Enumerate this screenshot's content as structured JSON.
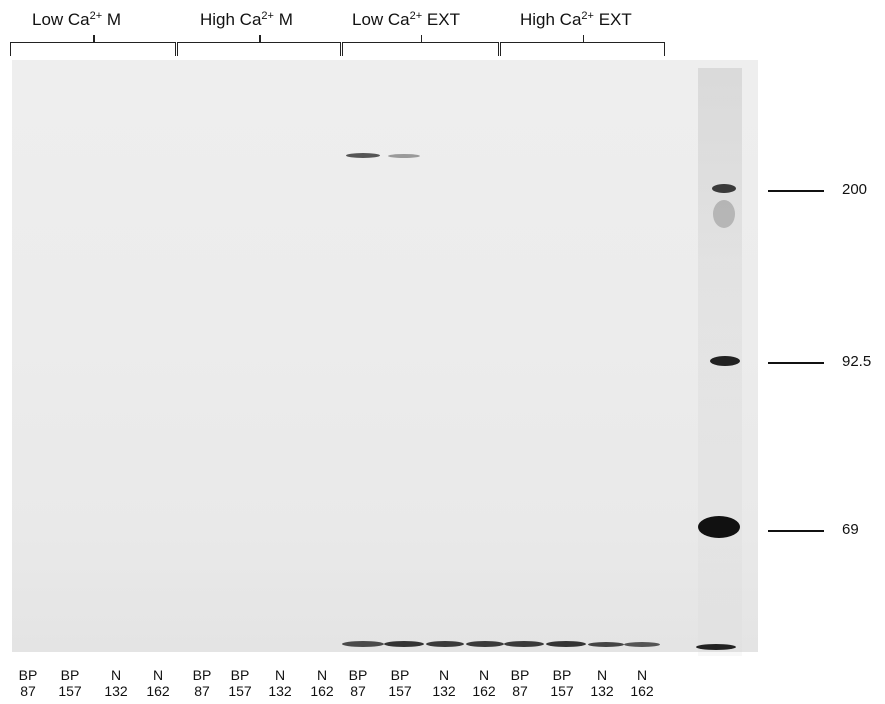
{
  "groups": [
    {
      "name_prefix": "Low Ca",
      "sup": "2+",
      "name_suffix": " M"
    },
    {
      "name_prefix": "High Ca",
      "sup": "2+",
      "name_suffix": " M"
    },
    {
      "name_prefix": "Low Ca",
      "sup": "2+",
      "name_suffix": " EXT"
    },
    {
      "name_prefix": "High Ca",
      "sup": "2+",
      "name_suffix": " EXT"
    }
  ],
  "lanes": [
    {
      "top": "BP",
      "bottom": "87"
    },
    {
      "top": "BP",
      "bottom": "157"
    },
    {
      "top": "N",
      "bottom": "132"
    },
    {
      "top": "N",
      "bottom": "162"
    },
    {
      "top": "BP",
      "bottom": "87"
    },
    {
      "top": "BP",
      "bottom": "157"
    },
    {
      "top": "N",
      "bottom": "132"
    },
    {
      "top": "N",
      "bottom": "162"
    },
    {
      "top": "BP",
      "bottom": "87"
    },
    {
      "top": "BP",
      "bottom": "157"
    },
    {
      "top": "N",
      "bottom": "132"
    },
    {
      "top": "N",
      "bottom": "162"
    },
    {
      "top": "BP",
      "bottom": "87"
    },
    {
      "top": "BP",
      "bottom": "157"
    },
    {
      "top": "N",
      "bottom": "132"
    },
    {
      "top": "N",
      "bottom": "162"
    }
  ],
  "markers": [
    "200",
    "92.5",
    "69"
  ]
}
